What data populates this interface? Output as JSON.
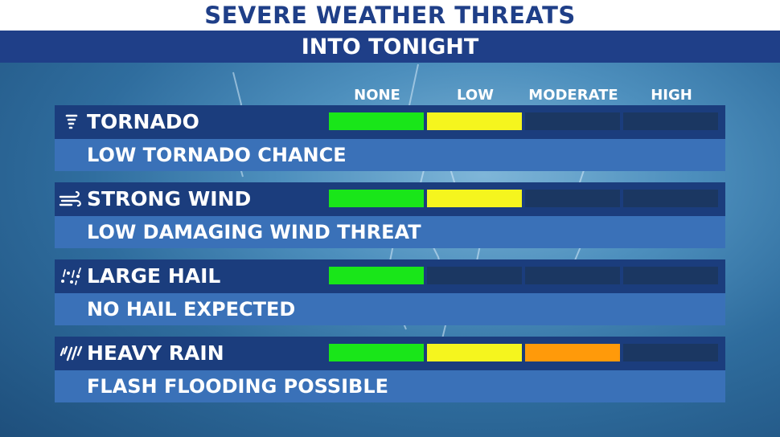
{
  "title": "SEVERE WEATHER THREATS",
  "subtitle": "INTO TONIGHT",
  "levels": [
    "NONE",
    "LOW",
    "MODERATE",
    "HIGH"
  ],
  "colors": {
    "title_text": "#1f3f88",
    "subtitle_band": "#1f3f88",
    "none": "#19e619",
    "low": "#f5f51e",
    "moderate": "#ff9a0a",
    "empty": "#1b3762"
  },
  "threats": [
    {
      "icon": "tornado-icon",
      "name": "TORNADO",
      "description": "LOW TORNADO CHANCE",
      "level": "LOW",
      "filled_segments": 2
    },
    {
      "icon": "wind-icon",
      "name": "STRONG WIND",
      "description": "LOW DAMAGING WIND THREAT",
      "level": "LOW",
      "filled_segments": 2
    },
    {
      "icon": "hail-icon",
      "name": "LARGE HAIL",
      "description": "NO HAIL EXPECTED",
      "level": "NONE",
      "filled_segments": 1
    },
    {
      "icon": "rain-icon",
      "name": "HEAVY RAIN",
      "description": "FLASH FLOODING POSSIBLE",
      "level": "MODERATE",
      "filled_segments": 3
    }
  ]
}
